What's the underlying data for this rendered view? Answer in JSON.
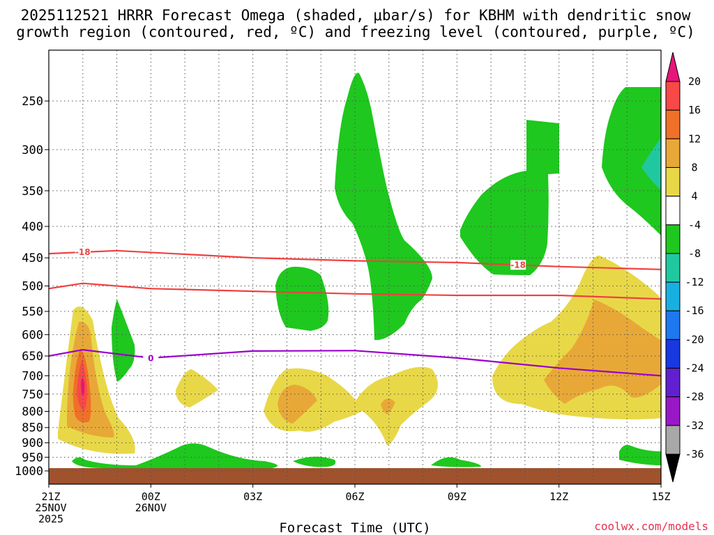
{
  "chart_data": {
    "type": "time-height contour",
    "title": [
      "2025112521 HRRR Forecast Omega (shaded, μbar/s) for KBHM with dendritic snow",
      "growth region (contoured, red, ºC) and freezing level (contoured, purple, ºC)"
    ],
    "xlabel": "Forecast Time (UTC)",
    "x_ticks": [
      {
        "label": [
          "21Z",
          "25NOV",
          "2025"
        ],
        "hours": 0
      },
      {
        "label": [
          "00Z",
          "26NOV"
        ],
        "hours": 3
      },
      {
        "label": [
          "03Z"
        ],
        "hours": 6
      },
      {
        "label": [
          "06Z"
        ],
        "hours": 9
      },
      {
        "label": [
          "09Z"
        ],
        "hours": 12
      },
      {
        "label": [
          "12Z"
        ],
        "hours": 15
      },
      {
        "label": [
          "15Z"
        ],
        "hours": 18
      }
    ],
    "xlim": [
      0,
      18
    ],
    "y_ticks": [
      250,
      300,
      350,
      400,
      450,
      500,
      550,
      600,
      650,
      700,
      750,
      800,
      850,
      900,
      950,
      1000
    ],
    "ylim_hPa": [
      1000,
      200
    ],
    "y_scale": "log-pressure",
    "grid": "dotted",
    "dgz_contours": [
      {
        "label": "-18",
        "color": "#f04040",
        "points": [
          [
            0,
            443
          ],
          [
            2,
            438
          ],
          [
            6,
            450
          ],
          [
            9,
            455
          ],
          [
            12,
            458
          ],
          [
            15,
            465
          ],
          [
            18,
            470
          ]
        ]
      },
      {
        "label": "",
        "color": "#f04040",
        "points": [
          [
            0,
            505
          ],
          [
            1,
            495
          ],
          [
            3,
            505
          ],
          [
            6,
            510
          ],
          [
            9,
            515
          ],
          [
            12,
            518
          ],
          [
            15,
            518
          ],
          [
            18,
            525
          ]
        ]
      }
    ],
    "freezing_level": {
      "label": "0",
      "color": "#9900cc",
      "points": [
        [
          0,
          650
        ],
        [
          1,
          635
        ],
        [
          3,
          655
        ],
        [
          6,
          638
        ],
        [
          9,
          637
        ],
        [
          12,
          655
        ],
        [
          15,
          680
        ],
        [
          18,
          700
        ]
      ]
    },
    "colorbar": {
      "labels": [
        "20",
        "16",
        "12",
        "8",
        "4",
        "-4",
        "-8",
        "-12",
        "-16",
        "-20",
        "-24",
        "-28",
        "-32",
        "-36"
      ],
      "colors": [
        "#e8157a",
        "#f84848",
        "#f07028",
        "#e8a838",
        "#e8d848",
        "#ffffff",
        "#1ec81e",
        "#20c8a0",
        "#18b0e0",
        "#1e78f0",
        "#1838e0",
        "#6020d0",
        "#9818c8",
        "#a8a8a8",
        "#000000"
      ]
    },
    "surface_color": "#a0522d"
  },
  "credit": "coolwx.com/models",
  "credit_color": "#e83050"
}
